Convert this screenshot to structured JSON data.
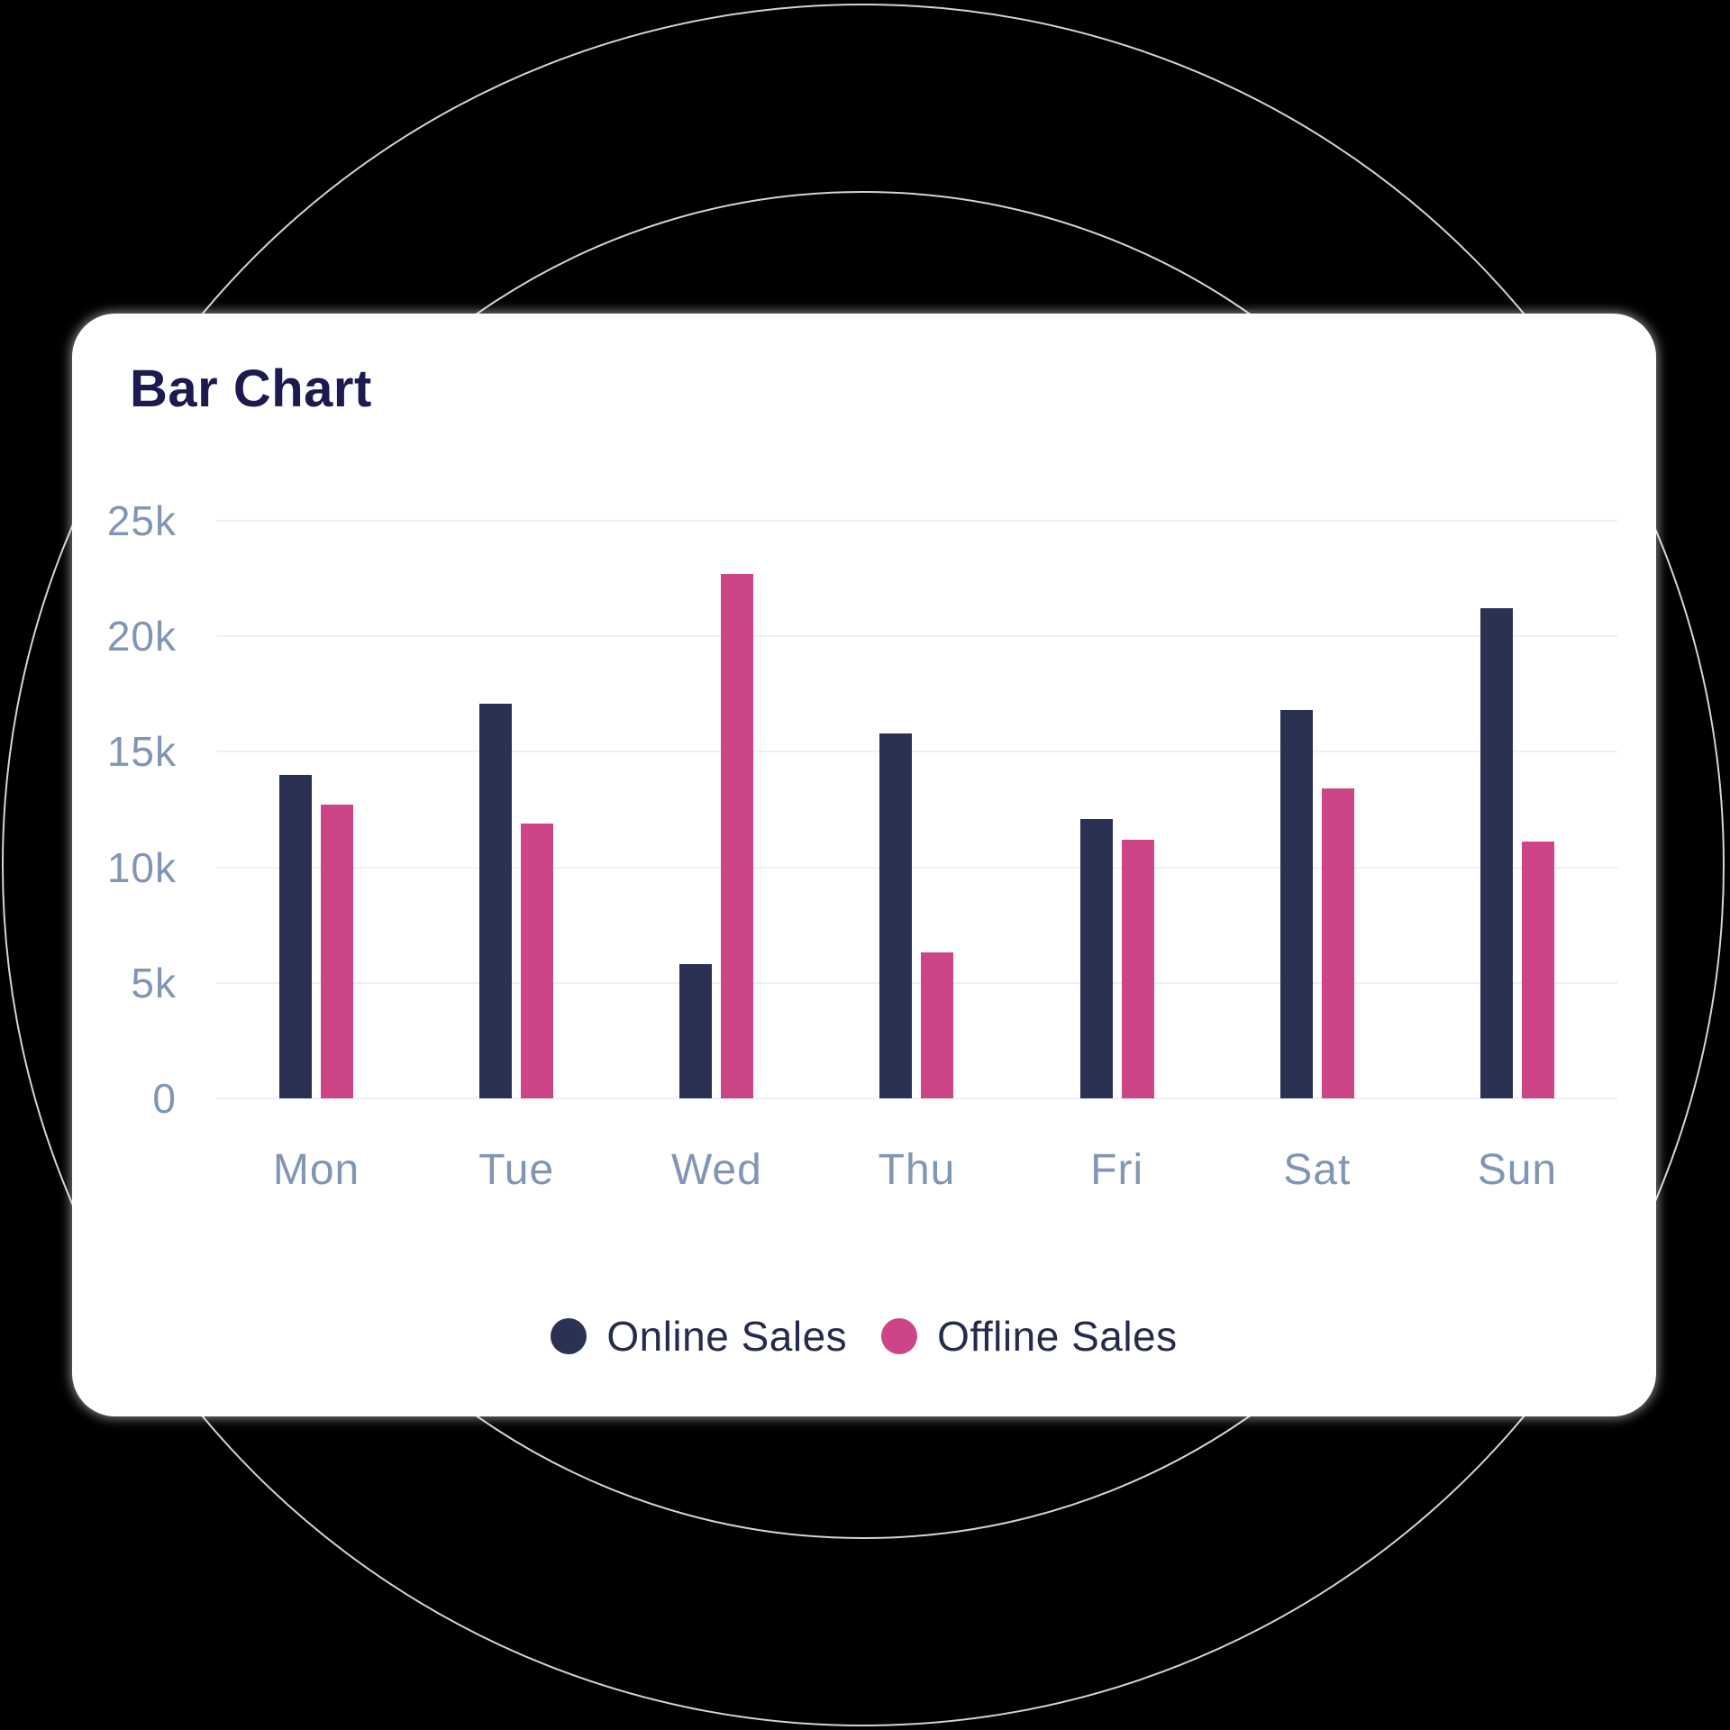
{
  "page": {
    "background": "#000000",
    "circle_stroke": "#d4d4d4"
  },
  "card": {
    "title": "Bar Chart",
    "title_color": "#1d1a50",
    "background": "#ffffff"
  },
  "chart_data": {
    "type": "bar",
    "title": "Bar Chart",
    "categories": [
      "Mon",
      "Tue",
      "Wed",
      "Thu",
      "Fri",
      "Sat",
      "Sun"
    ],
    "series": [
      {
        "name": "Online Sales",
        "color": "#2a3153",
        "values": [
          14000,
          17100,
          5800,
          15800,
          12100,
          16800,
          21200
        ]
      },
      {
        "name": "Offline Sales",
        "color": "#cc4587",
        "values": [
          12700,
          11900,
          22700,
          6300,
          11200,
          13400,
          11100
        ]
      }
    ],
    "ylim": [
      0,
      25000
    ],
    "y_ticks": [
      {
        "value": 25000,
        "label": "25k"
      },
      {
        "value": 20000,
        "label": "20k"
      },
      {
        "value": 15000,
        "label": "15k"
      },
      {
        "value": 10000,
        "label": "10k"
      },
      {
        "value": 5000,
        "label": "5k"
      },
      {
        "value": 0,
        "label": "0"
      }
    ],
    "xlabel": "",
    "ylabel": "",
    "grid": "horizontal",
    "gridline_color": "#eef0f3",
    "axis_label_color": "#8195b5",
    "legend_position": "bottom"
  }
}
